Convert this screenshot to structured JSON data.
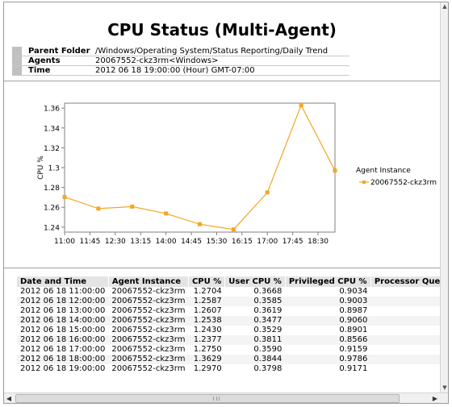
{
  "report": {
    "title": "CPU Status (Multi-Agent)",
    "meta": [
      {
        "label": "Parent Folder",
        "value": "/Windows/Operating System/Status Reporting/Daily Trend"
      },
      {
        "label": "Agents",
        "value": "20067552-ckz3rm<Windows>"
      },
      {
        "label": "Time",
        "value": "2012 06 18 19:00:00  (Hour)  GMT-07:00"
      }
    ]
  },
  "chart_data": {
    "type": "line",
    "ylabel": "CPU %",
    "xlabel": "",
    "ylim": [
      1.235,
      1.365
    ],
    "yticks": [
      1.24,
      1.26,
      1.28,
      1.3,
      1.32,
      1.34,
      1.36
    ],
    "ytick_labels": [
      "1.24",
      "1.26",
      "1.28",
      "1.3",
      "1.32",
      "1.34",
      "1.36"
    ],
    "xlim": [
      "11:00",
      "19:00"
    ],
    "xtick_labels": [
      "11:00",
      "11:45",
      "12:30",
      "13:15",
      "14:00",
      "14:45",
      "15:30",
      "16:15",
      "17:00",
      "17:45",
      "18:30"
    ],
    "legend_title": "Agent Instance",
    "legend_position": "right",
    "color": "#f5a623",
    "series": [
      {
        "name": "20067552-ckz3rm",
        "x": [
          "11:00",
          "12:00",
          "13:00",
          "14:00",
          "15:00",
          "16:00",
          "17:00",
          "18:00",
          "19:00"
        ],
        "values": [
          1.2704,
          1.2587,
          1.2607,
          1.2538,
          1.243,
          1.2377,
          1.275,
          1.3629,
          1.297
        ]
      }
    ]
  },
  "table": {
    "columns": [
      "Date and Time",
      "Agent Instance",
      "CPU %",
      "User CPU %",
      "Privileged CPU %",
      "Processor Queue L"
    ],
    "rows": [
      [
        "2012 06 18 11:00:00",
        "20067552-ckz3rm",
        "1.2704",
        "0.3668",
        "0.9034",
        ""
      ],
      [
        "2012 06 18 12:00:00",
        "20067552-ckz3rm",
        "1.2587",
        "0.3585",
        "0.9003",
        ""
      ],
      [
        "2012 06 18 13:00:00",
        "20067552-ckz3rm",
        "1.2607",
        "0.3619",
        "0.8987",
        ""
      ],
      [
        "2012 06 18 14:00:00",
        "20067552-ckz3rm",
        "1.2538",
        "0.3477",
        "0.9060",
        ""
      ],
      [
        "2012 06 18 15:00:00",
        "20067552-ckz3rm",
        "1.2430",
        "0.3529",
        "0.8901",
        ""
      ],
      [
        "2012 06 18 16:00:00",
        "20067552-ckz3rm",
        "1.2377",
        "0.3811",
        "0.8566",
        ""
      ],
      [
        "2012 06 18 17:00:00",
        "20067552-ckz3rm",
        "1.2750",
        "0.3590",
        "0.9159",
        ""
      ],
      [
        "2012 06 18 18:00:00",
        "20067552-ckz3rm",
        "1.3629",
        "0.3844",
        "0.9786",
        ""
      ],
      [
        "2012 06 18 19:00:00",
        "20067552-ckz3rm",
        "1.2970",
        "0.3798",
        "0.9171",
        ""
      ]
    ]
  },
  "icons": {
    "scroll_up": "up-arrow-icon",
    "scroll_down": "down-arrow-icon",
    "scroll_left": "left-arrow-icon",
    "scroll_right": "right-arrow-icon"
  }
}
